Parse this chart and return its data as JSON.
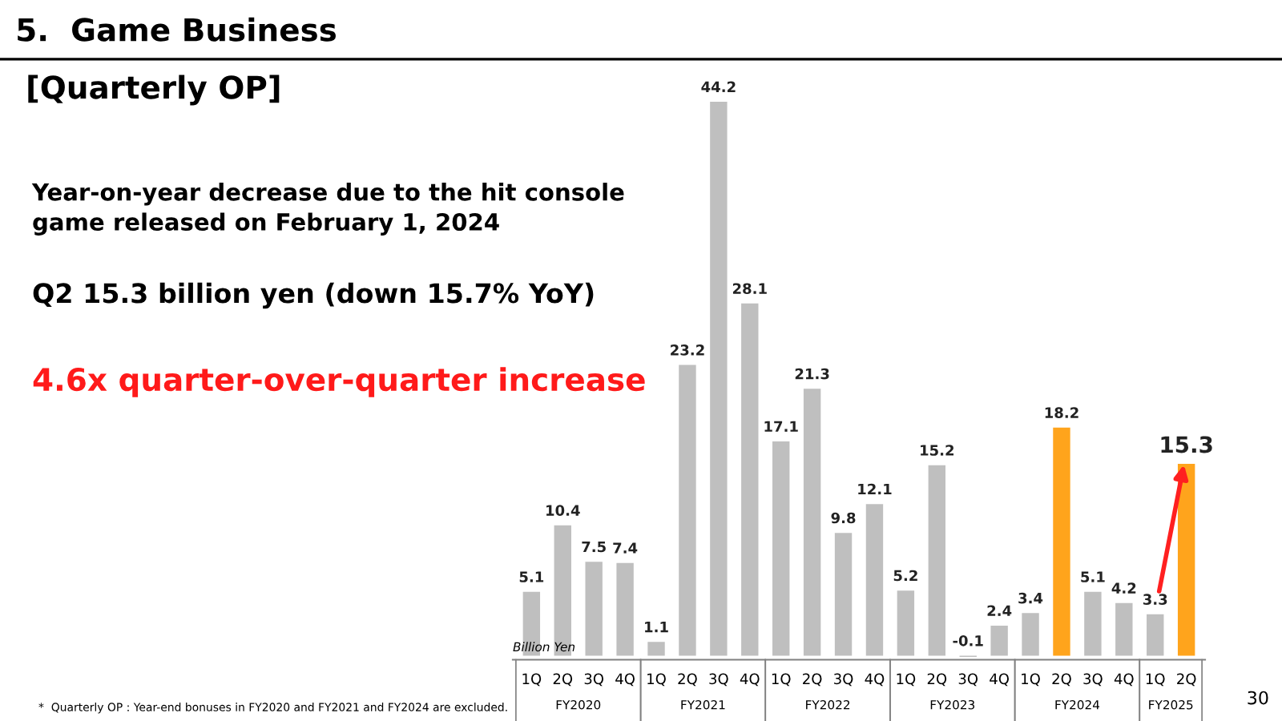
{
  "chart_data": {
    "type": "bar",
    "title": "5.  Game Business",
    "subtitle": "[Quarterly OP]",
    "ylabel": "Billion Yen",
    "categories": [
      "1Q",
      "2Q",
      "3Q",
      "4Q",
      "1Q",
      "2Q",
      "3Q",
      "4Q",
      "1Q",
      "2Q",
      "3Q",
      "4Q",
      "1Q",
      "2Q",
      "3Q",
      "4Q",
      "1Q",
      "2Q",
      "3Q",
      "4Q",
      "1Q",
      "2Q"
    ],
    "values": [
      5.1,
      10.4,
      7.5,
      7.4,
      1.1,
      23.2,
      44.2,
      28.1,
      17.1,
      21.3,
      9.8,
      12.1,
      5.2,
      15.2,
      -0.1,
      2.4,
      3.4,
      18.2,
      5.1,
      4.2,
      3.3,
      15.3
    ],
    "colors": [
      "#bfbfbf",
      "#bfbfbf",
      "#bfbfbf",
      "#bfbfbf",
      "#bfbfbf",
      "#bfbfbf",
      "#bfbfbf",
      "#bfbfbf",
      "#bfbfbf",
      "#bfbfbf",
      "#bfbfbf",
      "#bfbfbf",
      "#bfbfbf",
      "#bfbfbf",
      "#bfbfbf",
      "#bfbfbf",
      "#bfbfbf",
      "#ffa41c",
      "#bfbfbf",
      "#bfbfbf",
      "#bfbfbf",
      "#ffa41c"
    ],
    "data_labels": true,
    "annotations": [
      "FY2020",
      "FY2021",
      "FY2022",
      "FY2023",
      "FY2024",
      "FY2025",
      "Year-on-year decrease due to the hit console\ngame released on February 1, 2024",
      "Q2 15.3 billion yen (down 15.7% YoY)",
      "4.6x quarter-over-quarter increase",
      "*  Quarterly OP : Year-end bonuses in FY2020 and FY2021 and FY2024 are excluded.",
      "30"
    ]
  }
}
